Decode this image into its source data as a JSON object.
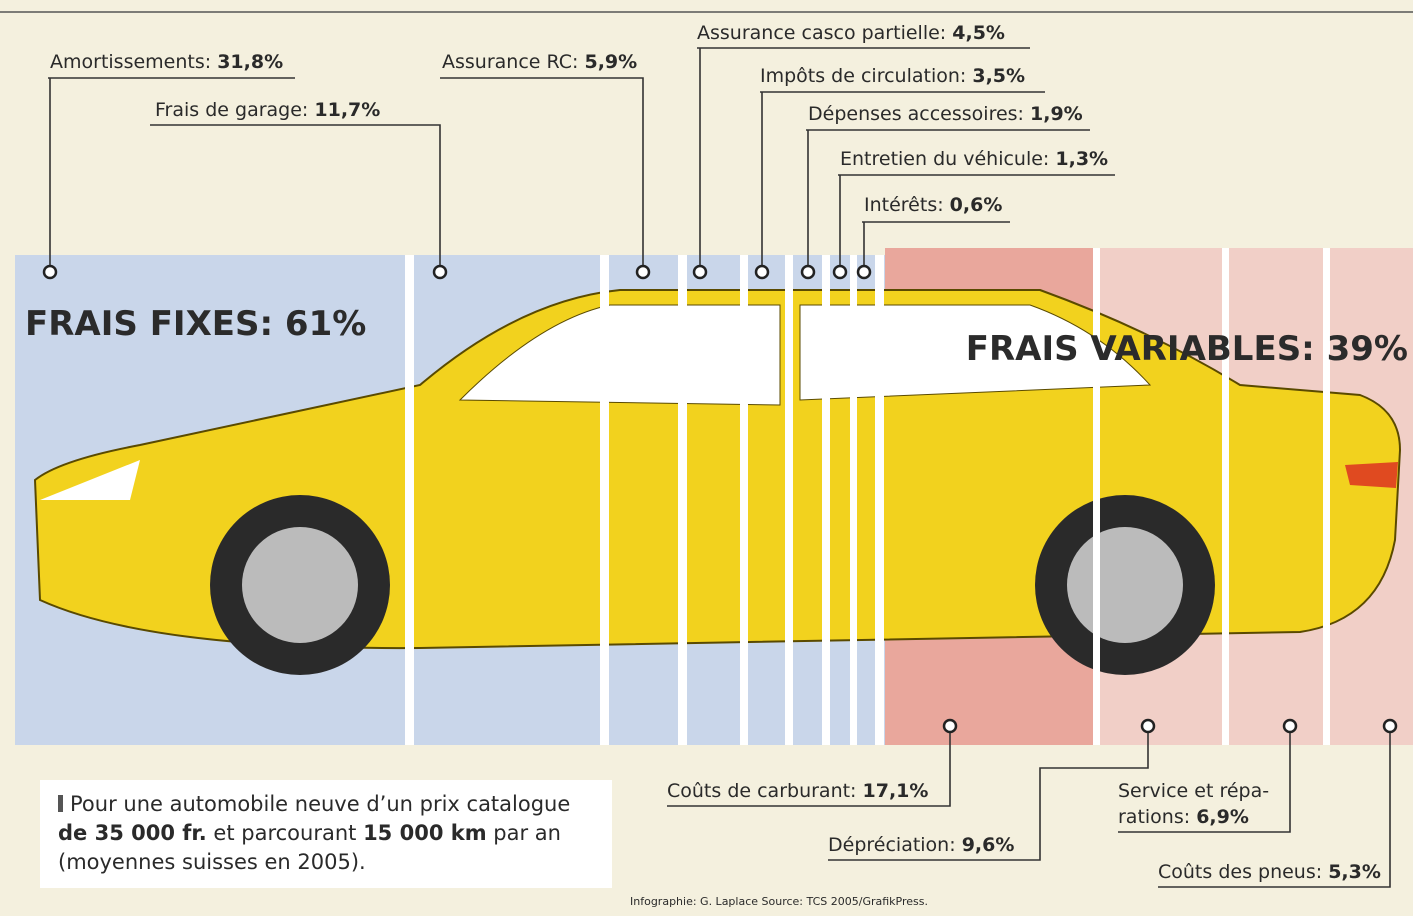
{
  "fixed": {
    "heading": "FRAIS FIXES: 61%",
    "items": [
      {
        "label": "Amortissements:",
        "value": "31,8%"
      },
      {
        "label": "Frais de garage:",
        "value": "11,7%"
      },
      {
        "label": "Assurance RC:",
        "value": "5,9%"
      },
      {
        "label": "Assurance casco partielle:",
        "value": "4,5%"
      },
      {
        "label": "Impôts de circulation:",
        "value": "3,5%"
      },
      {
        "label": "Dépenses accessoires:",
        "value": "1,9%"
      },
      {
        "label": "Entretien du véhicule:",
        "value": "1,3%"
      },
      {
        "label": "Intérêts:",
        "value": "0,6%"
      }
    ]
  },
  "variable": {
    "heading": "FRAIS VARIABLES: 39%",
    "items": [
      {
        "label": "Coûts de carburant:",
        "value": "17,1%"
      },
      {
        "label": "Dépréciation:",
        "value": "9,6%"
      },
      {
        "label": [
          "Service et répa-",
          "rations:"
        ],
        "value": "6,9%"
      },
      {
        "label": "Coûts des pneus:",
        "value": "5,3%"
      }
    ]
  },
  "note": {
    "line1": "Pour une automobile neuve d’un prix catalogue",
    "bold1": "de 35 000 fr.",
    "mid": " et parcourant ",
    "bold2": "15 000 km",
    "end": " par an",
    "line3": "(moyennes suisses en 2005)."
  },
  "credit": "Infographie: G. Laplace Source: TCS 2005/GrafikPress."
}
